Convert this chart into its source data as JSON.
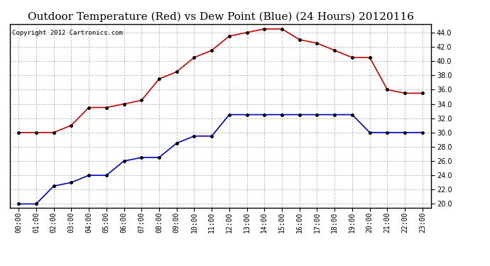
{
  "title": "Outdoor Temperature (Red) vs Dew Point (Blue) (24 Hours) 20120116",
  "copyright": "Copyright 2012 Cartronics.com",
  "x_labels": [
    "00:00",
    "01:00",
    "02:00",
    "03:00",
    "04:00",
    "05:00",
    "06:00",
    "07:00",
    "08:00",
    "09:00",
    "10:00",
    "11:00",
    "12:00",
    "13:00",
    "14:00",
    "15:00",
    "16:00",
    "17:00",
    "18:00",
    "19:00",
    "20:00",
    "21:00",
    "22:00",
    "23:00"
  ],
  "temp_red": [
    30.0,
    30.0,
    30.0,
    31.0,
    33.5,
    33.5,
    34.0,
    34.5,
    37.5,
    38.5,
    40.5,
    41.5,
    43.5,
    44.0,
    44.5,
    44.5,
    43.0,
    42.5,
    41.5,
    40.5,
    40.5,
    36.0,
    35.5,
    35.5
  ],
  "dew_blue": [
    20.0,
    20.0,
    22.5,
    23.0,
    24.0,
    24.0,
    26.0,
    26.5,
    26.5,
    28.5,
    29.5,
    29.5,
    32.5,
    32.5,
    32.5,
    32.5,
    32.5,
    32.5,
    32.5,
    32.5,
    30.0,
    30.0,
    30.0,
    30.0
  ],
  "ylim": [
    19.5,
    45.2
  ],
  "yticks": [
    20.0,
    22.0,
    24.0,
    26.0,
    28.0,
    30.0,
    32.0,
    34.0,
    36.0,
    38.0,
    40.0,
    42.0,
    44.0
  ],
  "red_color": "#cc0000",
  "blue_color": "#0000cc",
  "grid_color": "#bbbbbb",
  "bg_color": "#ffffff",
  "title_fontsize": 11,
  "copyright_fontsize": 6.5,
  "tick_fontsize": 7
}
